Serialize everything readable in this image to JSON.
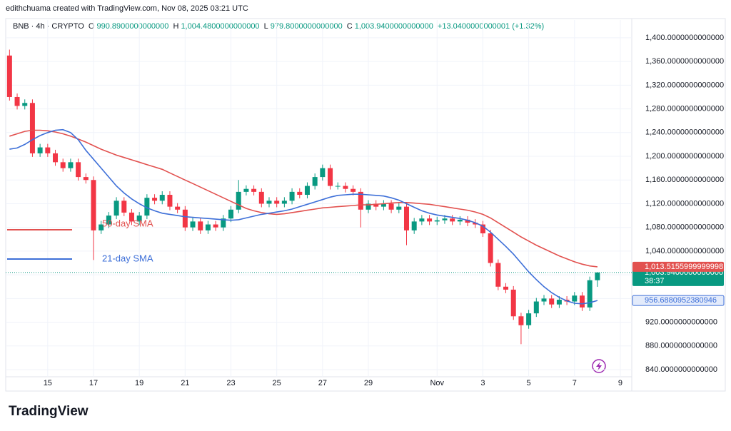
{
  "brand": "TradingView",
  "chart_data": {
    "type": "candlestick",
    "attribution": "edithchuama created with TradingView.com, Nov 08, 2025 03:21 UTC",
    "symbol": "BNB · 4h · CRYPTO",
    "header": {
      "open_label": "O",
      "open": "990.8900000000000",
      "high_label": "H",
      "high": "1,004.4800000000000",
      "low_label": "L",
      "low": "979.8000000000000",
      "close_label": "C",
      "close": "1,003.9400000000000",
      "change": "+13.0400000000001 (+1.32%)"
    },
    "up_color": "#089981",
    "down_color": "#f23645",
    "xlim": [
      -0.5,
      81.5
    ],
    "xticks": [
      {
        "value": 5,
        "label": "15"
      },
      {
        "value": 11,
        "label": "17"
      },
      {
        "value": 17,
        "label": "19"
      },
      {
        "value": 23,
        "label": "21"
      },
      {
        "value": 29,
        "label": "23"
      },
      {
        "value": 35,
        "label": "25"
      },
      {
        "value": 41,
        "label": "27"
      },
      {
        "value": 47,
        "label": "29"
      },
      {
        "value": 56,
        "label": "Nov"
      },
      {
        "value": 62,
        "label": "3"
      },
      {
        "value": 68,
        "label": "5"
      },
      {
        "value": 74,
        "label": "7"
      },
      {
        "value": 80,
        "label": "9"
      }
    ],
    "ylim": [
      828,
      1430
    ],
    "yticks": [
      {
        "value": 840,
        "label": "840.0000000000000"
      },
      {
        "value": 880,
        "label": "880.0000000000000"
      },
      {
        "value": 920,
        "label": "920.0000000000000"
      },
      {
        "value": 960,
        "label": "960.0000000000000"
      },
      {
        "value": 1000,
        "label": "1,000.0000000000000"
      },
      {
        "value": 1040,
        "label": "1,040.0000000000000"
      },
      {
        "value": 1080,
        "label": "1,080.0000000000000"
      },
      {
        "value": 1120,
        "label": "1,120.0000000000000"
      },
      {
        "value": 1160,
        "label": "1,160.0000000000000"
      },
      {
        "value": 1200,
        "label": "1,200.0000000000000"
      },
      {
        "value": 1240,
        "label": "1,240.0000000000000"
      },
      {
        "value": 1280,
        "label": "1,280.0000000000000"
      },
      {
        "value": 1320,
        "label": "1,320.0000000000000"
      },
      {
        "value": 1360,
        "label": "1,360.0000000000000"
      },
      {
        "value": 1400,
        "label": "1,400.0000000000000"
      }
    ],
    "series": [
      {
        "open": [
          1370,
          1300,
          1285,
          1290,
          1205,
          1215,
          1205,
          1190,
          1180,
          1190,
          1165,
          1160,
          1075,
          1085,
          1100,
          1125,
          1105,
          1090,
          1100,
          1130,
          1125,
          1135,
          1115,
          1110,
          1080,
          1090,
          1075,
          1085,
          1080,
          1095,
          1110,
          1140,
          1145,
          1140,
          1120,
          1125,
          1120,
          1125,
          1140,
          1135,
          1150,
          1165,
          1180,
          1150,
          1150,
          1145,
          1140,
          1110,
          1120,
          1115,
          1120,
          1110,
          1115,
          1075,
          1090,
          1095,
          1090,
          1092,
          1095,
          1090,
          1093,
          1088,
          1085,
          1070,
          1020,
          980,
          975,
          930,
          915,
          935,
          955,
          960,
          950,
          958,
          955,
          965,
          945,
          990.89
        ],
        "high": [
          1380,
          1306,
          1296,
          1296,
          1221,
          1221,
          1211,
          1196,
          1196,
          1196,
          1171,
          1166,
          1091,
          1106,
          1131,
          1131,
          1111,
          1106,
          1136,
          1136,
          1141,
          1141,
          1121,
          1116,
          1096,
          1096,
          1091,
          1091,
          1101,
          1116,
          1160,
          1151,
          1151,
          1146,
          1131,
          1131,
          1131,
          1146,
          1146,
          1156,
          1171,
          1186,
          1186,
          1156,
          1156,
          1151,
          1146,
          1126,
          1126,
          1126,
          1126,
          1121,
          1121,
          1096,
          1101,
          1101,
          1098,
          1101,
          1101,
          1099,
          1099,
          1094,
          1091,
          1076,
          1026,
          986,
          981,
          936,
          941,
          961,
          966,
          966,
          964,
          964,
          971,
          971,
          997,
          1004.48
        ],
        "low": [
          1294,
          1279,
          1279,
          1199,
          1199,
          1199,
          1184,
          1174,
          1174,
          1159,
          1154,
          1025,
          1069,
          1079,
          1094,
          1099,
          1084,
          1084,
          1094,
          1119,
          1119,
          1109,
          1104,
          1074,
          1074,
          1069,
          1069,
          1074,
          1074,
          1089,
          1104,
          1134,
          1134,
          1114,
          1114,
          1114,
          1114,
          1119,
          1129,
          1129,
          1144,
          1159,
          1144,
          1144,
          1139,
          1134,
          1080,
          1104,
          1109,
          1109,
          1104,
          1104,
          1050,
          1069,
          1084,
          1084,
          1084,
          1086,
          1084,
          1084,
          1082,
          1079,
          1064,
          1014,
          974,
          969,
          924,
          883,
          909,
          929,
          949,
          944,
          944,
          949,
          949,
          939,
          939,
          979.8
        ],
        "close": [
          1300,
          1285,
          1290,
          1205,
          1215,
          1205,
          1190,
          1180,
          1190,
          1165,
          1160,
          1075,
          1085,
          1100,
          1125,
          1105,
          1090,
          1100,
          1130,
          1125,
          1135,
          1115,
          1110,
          1080,
          1090,
          1075,
          1085,
          1080,
          1095,
          1110,
          1140,
          1145,
          1140,
          1120,
          1125,
          1120,
          1125,
          1140,
          1135,
          1150,
          1165,
          1180,
          1150,
          1150,
          1145,
          1140,
          1110,
          1120,
          1115,
          1120,
          1110,
          1115,
          1075,
          1090,
          1095,
          1090,
          1092,
          1095,
          1090,
          1093,
          1088,
          1085,
          1070,
          1020,
          980,
          975,
          930,
          915,
          935,
          955,
          960,
          950,
          958,
          955,
          965,
          945,
          990.89,
          1003.94
        ],
        "last_label": "1,003.9400000000000",
        "countdown": "38:37"
      }
    ],
    "indicators": [
      {
        "name": "50-day SMA",
        "color": "#e2514f",
        "last_label": "1,013.5155999999998",
        "values": [
          1234,
          1238,
          1242,
          1244,
          1244,
          1243,
          1241,
          1238,
          1234,
          1229,
          1224,
          1218,
          1212,
          1207,
          1202,
          1198,
          1194,
          1190,
          1186,
          1182,
          1178,
          1172,
          1166,
          1160,
          1154,
          1148,
          1142,
          1136,
          1130,
          1124,
          1118,
          1112,
          1108,
          1105,
          1103,
          1102,
          1103,
          1105,
          1107,
          1109,
          1111,
          1113,
          1114,
          1115,
          1116,
          1117,
          1118,
          1118,
          1119,
          1120,
          1121,
          1122,
          1122,
          1121,
          1120,
          1119,
          1117,
          1115,
          1113,
          1111,
          1109,
          1106,
          1102,
          1096,
          1088,
          1080,
          1072,
          1064,
          1057,
          1050,
          1044,
          1038,
          1032,
          1027,
          1022,
          1018,
          1015,
          1013.5156
        ]
      },
      {
        "name": "21-day SMA",
        "color": "#3d6fd8",
        "last_label": "956.6880952380946",
        "values": [
          1212,
          1214,
          1220,
          1228,
          1235,
          1240,
          1244,
          1245,
          1240,
          1228,
          1210,
          1195,
          1180,
          1165,
          1150,
          1138,
          1128,
          1120,
          1113,
          1108,
          1104,
          1102,
          1100,
          1098,
          1097,
          1096,
          1095,
          1094,
          1093,
          1092,
          1093,
          1096,
          1099,
          1102,
          1104,
          1106,
          1108,
          1111,
          1115,
          1119,
          1123,
          1127,
          1131,
          1134,
          1135,
          1136,
          1136,
          1135,
          1134,
          1133,
          1130,
          1126,
          1120,
          1114,
          1108,
          1104,
          1101,
          1099,
          1097,
          1095,
          1092,
          1088,
          1082,
          1072,
          1060,
          1048,
          1035,
          1020,
          1005,
          992,
          980,
          970,
          962,
          956,
          952,
          951,
          953,
          956.688
        ]
      }
    ]
  }
}
